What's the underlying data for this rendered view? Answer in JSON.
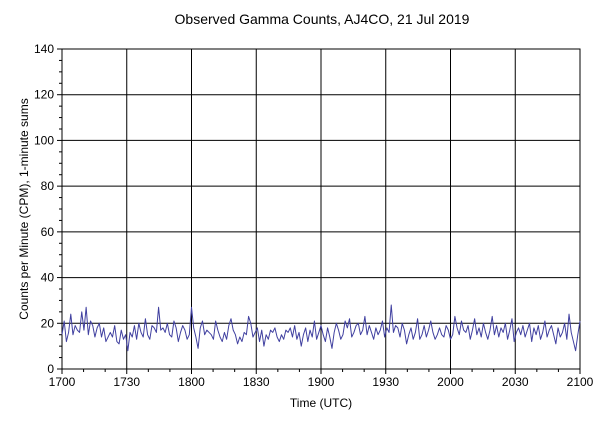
{
  "chart_data": {
    "type": "line",
    "title": "Observed Gamma Counts, AJ4CO, 21 Jul 2019",
    "xlabel": "Time (UTC)",
    "ylabel": "Counts per Minute (CPM), 1-minute sums",
    "xlim": [
      0,
      240
    ],
    "ylim": [
      0,
      140
    ],
    "x_ticks": [
      {
        "pos": 0,
        "label": "1700"
      },
      {
        "pos": 30,
        "label": "1730"
      },
      {
        "pos": 60,
        "label": "1800"
      },
      {
        "pos": 90,
        "label": "1830"
      },
      {
        "pos": 120,
        "label": "1900"
      },
      {
        "pos": 150,
        "label": "1930"
      },
      {
        "pos": 180,
        "label": "2000"
      },
      {
        "pos": 210,
        "label": "2030"
      },
      {
        "pos": 240,
        "label": "2100"
      }
    ],
    "y_ticks": [
      0,
      20,
      40,
      60,
      80,
      100,
      120,
      140
    ],
    "grid": true,
    "series_color": "#4040a0",
    "series": [
      {
        "values": [
          15,
          21,
          12,
          16,
          24,
          15,
          19,
          17,
          16,
          25,
          17,
          27,
          15,
          21,
          19,
          14,
          18,
          20,
          14,
          18,
          12,
          14,
          16,
          14,
          19,
          12,
          11,
          17,
          13,
          15,
          8,
          16,
          14,
          19,
          13,
          20,
          16,
          14,
          22,
          15,
          13,
          19,
          18,
          16,
          27,
          17,
          18,
          16,
          20,
          15,
          14,
          21,
          18,
          12,
          16,
          19,
          17,
          13,
          15,
          27,
          18,
          14,
          9,
          18,
          21,
          15,
          17,
          16,
          15,
          13,
          21,
          17,
          14,
          12,
          16,
          13,
          19,
          22,
          17,
          15,
          11,
          14,
          12,
          16,
          15,
          23,
          20,
          14,
          16,
          18,
          12,
          17,
          10,
          15,
          13,
          17,
          16,
          18,
          14,
          12,
          15,
          13,
          17,
          16,
          18,
          14,
          19,
          13,
          16,
          10,
          15,
          18,
          12,
          17,
          14,
          21,
          13,
          16,
          19,
          15,
          12,
          18,
          14,
          9,
          16,
          20,
          17,
          13,
          15,
          21,
          18,
          22,
          14,
          16,
          19,
          20,
          15,
          17,
          23,
          15,
          19,
          16,
          13,
          18,
          15,
          17,
          21,
          14,
          18,
          16,
          28,
          16,
          19,
          18,
          14,
          20,
          17,
          11,
          15,
          18,
          13,
          16,
          22,
          13,
          15,
          19,
          14,
          17,
          21,
          16,
          13,
          15,
          18,
          15,
          14,
          19,
          17,
          13,
          15,
          23,
          18,
          15,
          21,
          17,
          16,
          19,
          13,
          17,
          22,
          15,
          18,
          14,
          20,
          16,
          13,
          17,
          23,
          15,
          19,
          14,
          18,
          16,
          20,
          13,
          17,
          22,
          12,
          16,
          18,
          15,
          19,
          14,
          17,
          20,
          12,
          18,
          15,
          19,
          13,
          16,
          21,
          14,
          17,
          19,
          15,
          11,
          18,
          14,
          16,
          20,
          13,
          24,
          16,
          12,
          8,
          15,
          21
        ]
      }
    ]
  }
}
